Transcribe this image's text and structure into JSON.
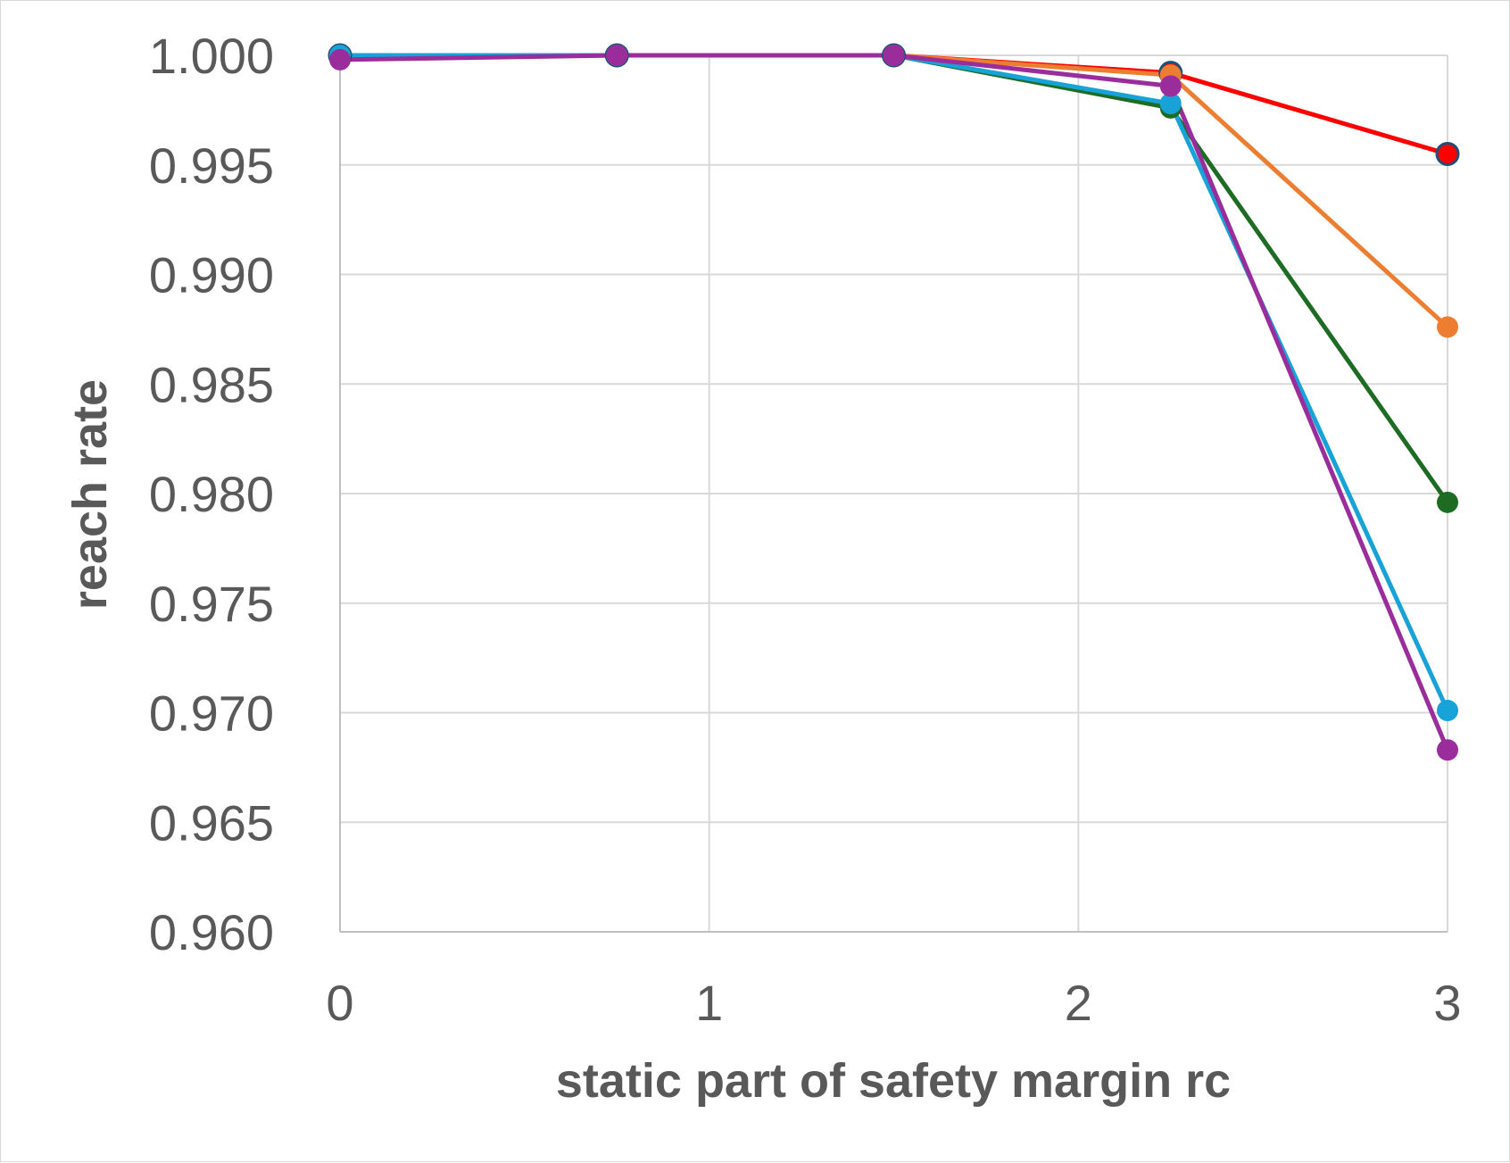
{
  "chart_data": {
    "type": "line",
    "xlabel": "static part of safety margin rc",
    "ylabel": "reach rate",
    "xlim": [
      0,
      3
    ],
    "ylim": [
      0.96,
      1.0
    ],
    "x_ticks": [
      "0",
      "1",
      "2",
      "3"
    ],
    "y_ticks": [
      "0.960",
      "0.965",
      "0.970",
      "0.975",
      "0.980",
      "0.985",
      "0.990",
      "0.995",
      "1.000"
    ],
    "grid": true,
    "legend": "none",
    "x": [
      0,
      0.75,
      1.5,
      2.25,
      3
    ],
    "series": [
      {
        "color": "#ff0000",
        "marker_edge": "#1f4e79",
        "values": [
          1.0,
          1.0,
          1.0,
          0.9992,
          0.9955
        ]
      },
      {
        "color": "#ed7d31",
        "values": [
          1.0,
          1.0,
          1.0,
          0.9991,
          0.9876
        ]
      },
      {
        "color": "#1e6b24",
        "values": [
          1.0,
          1.0,
          1.0,
          0.9976,
          0.9796
        ]
      },
      {
        "color": "#17a2d8",
        "values": [
          1.0,
          1.0,
          1.0,
          0.9978,
          0.9701
        ]
      },
      {
        "color": "#9b2c9b",
        "values": [
          0.9998,
          1.0,
          1.0,
          0.9986,
          0.9683
        ]
      }
    ]
  }
}
